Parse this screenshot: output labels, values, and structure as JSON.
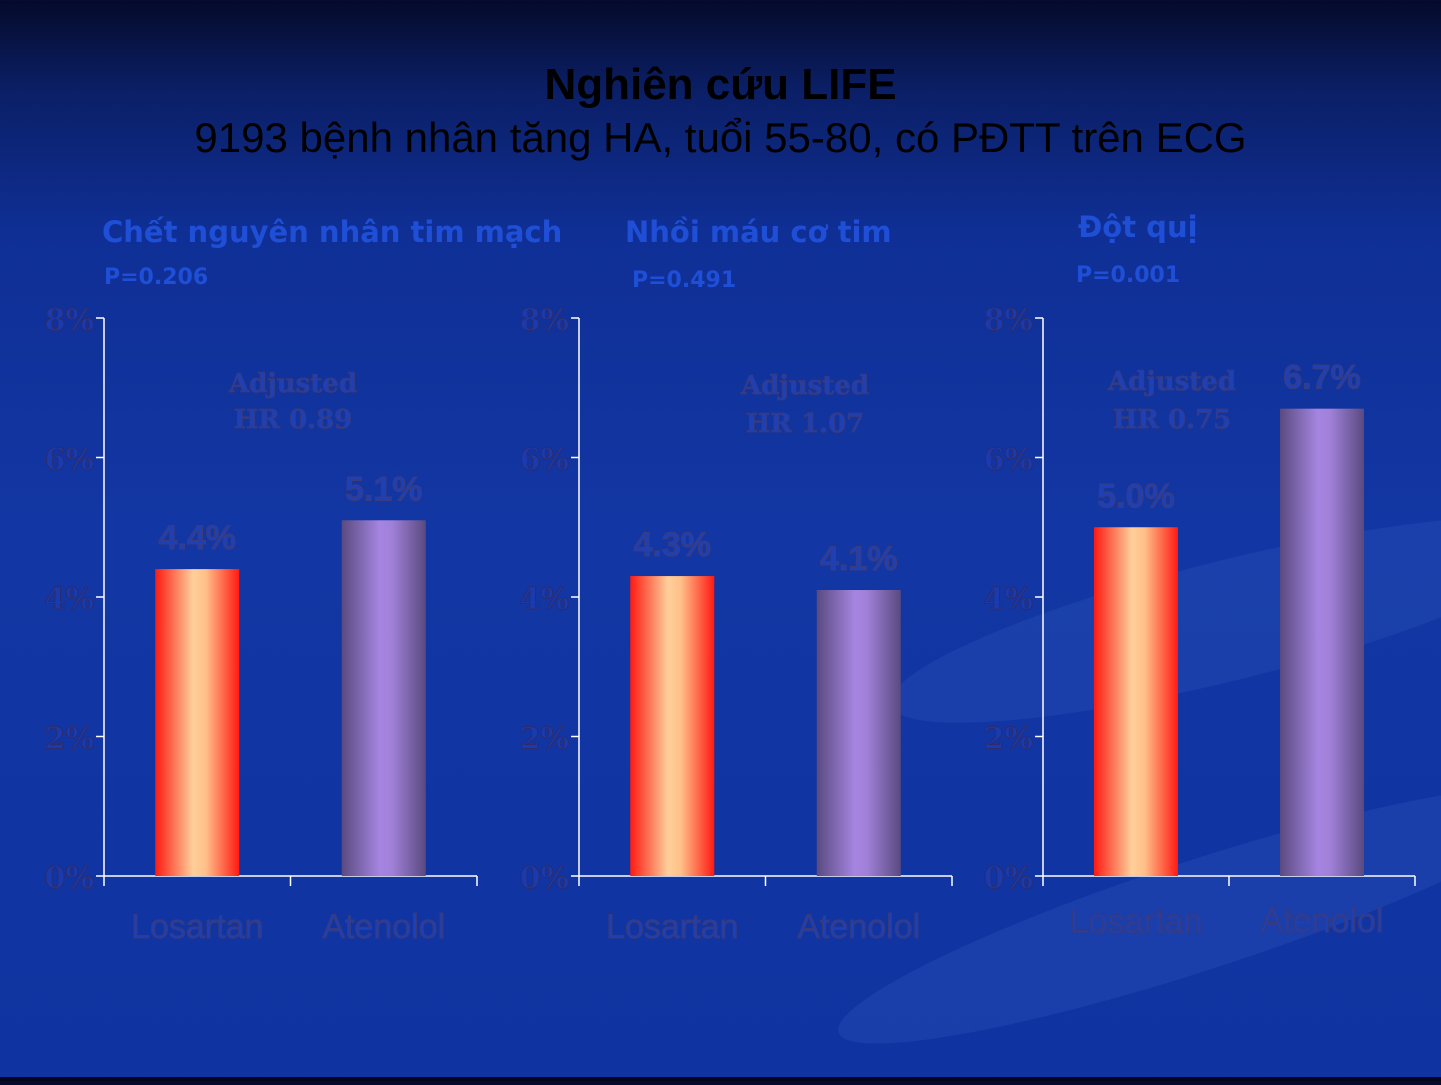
{
  "title": {
    "line1": "Nghiên cứu LIFE",
    "line2": "9193 bệnh nhân tăng HA, tuổi 55-80, có PĐTT trên ECG"
  },
  "colors": {
    "losartan": [
      "#ff1a12",
      "#ffcf9a",
      "#ff1a12"
    ],
    "atenolol": [
      "#5a4a80",
      "#a585e0",
      "#5a4a80"
    ],
    "axis": "#ffffff"
  },
  "chart_data": [
    {
      "type": "bar",
      "title": "Chết nguyên nhân tim mạch",
      "p_value": "P=0.206",
      "annotation": [
        "Adjusted",
        "HR 0.89"
      ],
      "categories": [
        "Losartan",
        "Atenolol"
      ],
      "values": [
        4.4,
        5.1
      ],
      "value_labels": [
        "4.4%",
        "5.1%"
      ],
      "yticks": [
        "0%",
        "2%",
        "4%",
        "6%",
        "8%"
      ],
      "ylim": [
        0,
        8
      ]
    },
    {
      "type": "bar",
      "title": "Nhồi máu cơ tim",
      "p_value": "P=0.491",
      "annotation": [
        "Adjusted",
        "HR 1.07"
      ],
      "categories": [
        "Losartan",
        "Atenolol"
      ],
      "values": [
        4.3,
        4.1
      ],
      "value_labels": [
        "4.3%",
        "4.1%"
      ],
      "yticks": [
        "0%",
        "2%",
        "4%",
        "6%",
        "8%"
      ],
      "ylim": [
        0,
        8
      ]
    },
    {
      "type": "bar",
      "title": "Đột quị",
      "p_value": "P=0.001",
      "annotation": [
        "Adjusted",
        "HR 0.75"
      ],
      "categories": [
        "Losartan",
        "Atenolol"
      ],
      "values": [
        5.0,
        6.7
      ],
      "value_labels": [
        "5.0%",
        "6.7%"
      ],
      "yticks": [
        "0%",
        "2%",
        "4%",
        "6%",
        "8%"
      ],
      "ylim": [
        0,
        8
      ]
    }
  ]
}
